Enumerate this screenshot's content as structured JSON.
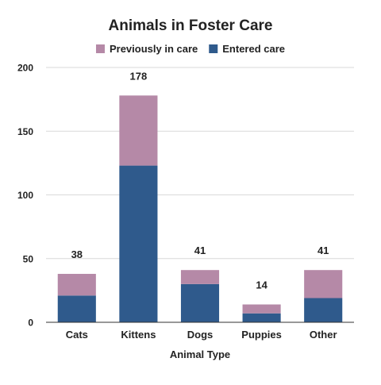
{
  "chart_data": {
    "type": "bar",
    "stacked": true,
    "title": "Animals in Foster Care",
    "xlabel": "Animal Type",
    "ylabel": "",
    "categories": [
      "Cats",
      "Kittens",
      "Dogs",
      "Puppies",
      "Other"
    ],
    "series": [
      {
        "name": "Entered care",
        "color": "#2f5a8c",
        "values": [
          21,
          123,
          30,
          7,
          19
        ]
      },
      {
        "name": "Previously in care",
        "color": "#b589a7",
        "values": [
          17,
          55,
          11,
          7,
          22
        ]
      }
    ],
    "legend_order": [
      "Previously in care",
      "Entered care"
    ],
    "totals": [
      38,
      178,
      41,
      14,
      41
    ],
    "ylim": [
      0,
      200
    ],
    "yticks": [
      0,
      50,
      100,
      150,
      200
    ],
    "grid": true,
    "legend_position": "top"
  }
}
